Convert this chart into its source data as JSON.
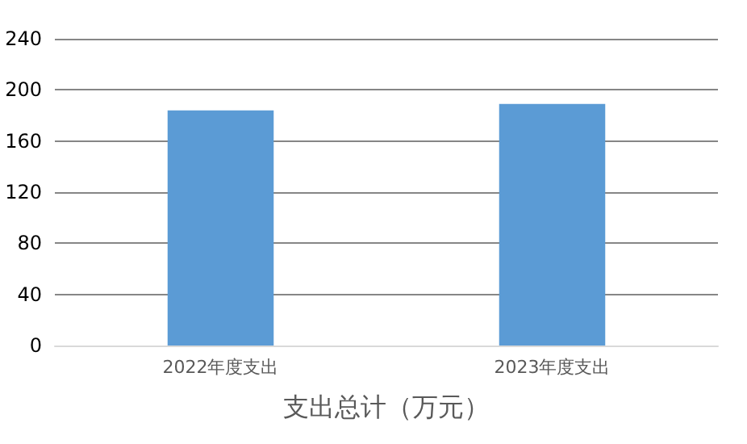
{
  "chart_data": {
    "type": "bar",
    "xlabel": "支出总计（万元）",
    "categories": [
      "2022年度支出",
      "2023年度支出"
    ],
    "values": [
      184,
      189
    ],
    "color": "#5b9bd5",
    "ylim": [
      0,
      240
    ],
    "yticks": [
      0,
      40,
      80,
      120,
      160,
      200,
      240
    ],
    "grid": "y"
  }
}
